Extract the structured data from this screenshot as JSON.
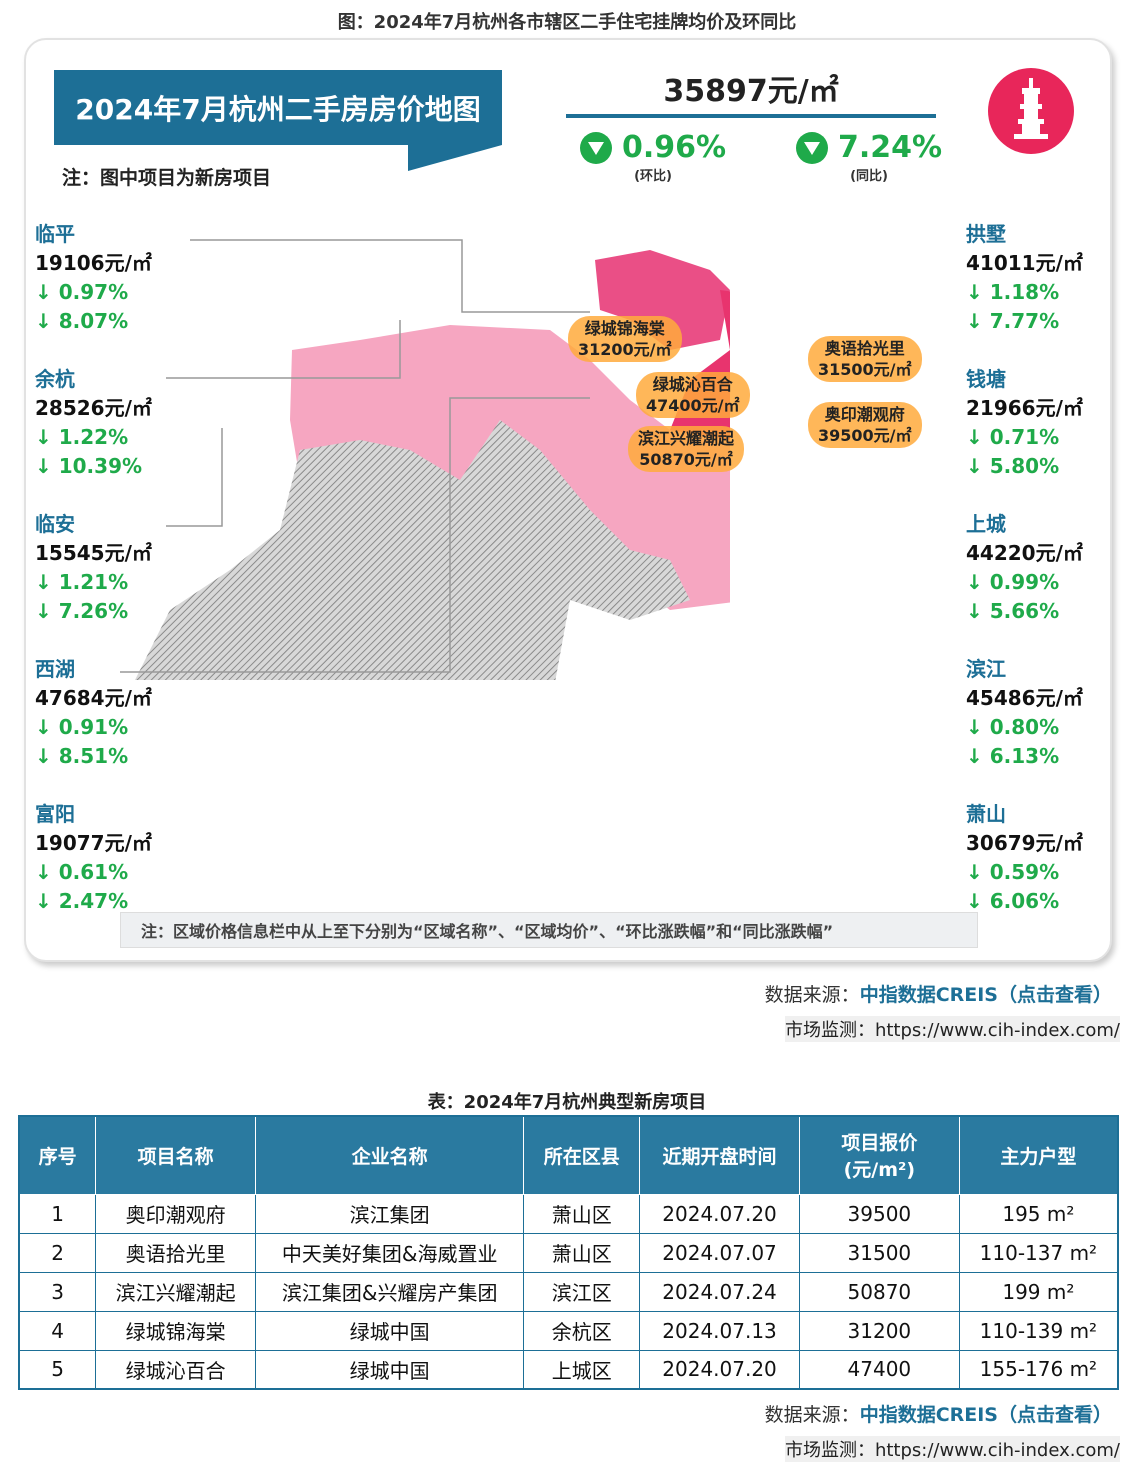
{
  "figure_title": "图：2024年7月杭州各市辖区二手住宅挂牌均价及环同比",
  "map": {
    "banner_title": "2024年7月杭州二手房房价地图",
    "note": "注：图中项目为新房项目",
    "avg_price": "35897元/㎡",
    "mom": {
      "value": "0.96%",
      "label": "(环比)",
      "direction": "down"
    },
    "yoy": {
      "value": "7.24%",
      "label": "(同比)",
      "direction": "down"
    },
    "logo_icon": "pagoda-icon",
    "colors": {
      "accent": "#1d6f96",
      "down": "#1faa4a",
      "core": "#e8346e",
      "mid": "#f48fb1",
      "hatched": "#b0b0b0"
    },
    "left_districts": [
      {
        "name": "临平",
        "price": "19106元/㎡",
        "mom": "↓ 0.97%",
        "yoy": "↓ 8.07%"
      },
      {
        "name": "余杭",
        "price": "28526元/㎡",
        "mom": "↓ 1.22%",
        "yoy": "↓ 10.39%"
      },
      {
        "name": "临安",
        "price": "15545元/㎡",
        "mom": "↓ 1.21%",
        "yoy": "↓ 7.26%"
      },
      {
        "name": "西湖",
        "price": "47684元/㎡",
        "mom": "↓ 0.91%",
        "yoy": "↓ 8.51%"
      },
      {
        "name": "富阳",
        "price": "19077元/㎡",
        "mom": "↓ 0.61%",
        "yoy": "↓ 2.47%"
      }
    ],
    "right_districts": [
      {
        "name": "拱墅",
        "price": "41011元/㎡",
        "mom": "↓ 1.18%",
        "yoy": "↓ 7.77%"
      },
      {
        "name": "钱塘",
        "price": "21966元/㎡",
        "mom": "↓ 0.71%",
        "yoy": "↓ 5.80%"
      },
      {
        "name": "上城",
        "price": "44220元/㎡",
        "mom": "↓ 0.99%",
        "yoy": "↓ 5.66%"
      },
      {
        "name": "滨江",
        "price": "45486元/㎡",
        "mom": "↓ 0.80%",
        "yoy": "↓ 6.13%"
      },
      {
        "name": "萧山",
        "price": "30679元/㎡",
        "mom": "↓ 0.59%",
        "yoy": "↓ 6.06%"
      }
    ],
    "projects": [
      {
        "name": "绿城锦海棠",
        "price": "31200元/㎡"
      },
      {
        "name": "奥语拾光里",
        "price": "31500元/㎡"
      },
      {
        "name": "绿城沁百合",
        "price": "47400元/㎡"
      },
      {
        "name": "奥印潮观府",
        "price": "39500元/㎡"
      },
      {
        "name": "滨江兴耀潮起",
        "price": "50870元/㎡"
      }
    ],
    "bottom_note": "注：区域价格信息栏中从上至下分别为“区域名称”、“区域均价”、“环比涨跌幅”和“同比涨跌幅”",
    "watermark": "中指数据 CREIS"
  },
  "source": {
    "label": "数据来源：",
    "link": "中指数据CREIS（点击查看）",
    "monitor": "市场监测：https://www.cih-index.com/"
  },
  "table": {
    "title": "表：2024年7月杭州典型新房项目",
    "headers": [
      "序号",
      "项目名称",
      "企业名称",
      "所在区县",
      "近期开盘时间",
      "项目报价\n(元/m²)",
      "主力户型"
    ],
    "rows": [
      [
        "1",
        "奥印潮观府",
        "滨江集团",
        "萧山区",
        "2024.07.20",
        "39500",
        "195 m²"
      ],
      [
        "2",
        "奥语拾光里",
        "中天美好集团&海威置业",
        "萧山区",
        "2024.07.07",
        "31500",
        "110-137 m²"
      ],
      [
        "3",
        "滨江兴耀潮起",
        "滨江集团&兴耀房产集团",
        "滨江区",
        "2024.07.24",
        "50870",
        "199 m²"
      ],
      [
        "4",
        "绿城锦海棠",
        "绿城中国",
        "余杭区",
        "2024.07.13",
        "31200",
        "110-139 m²"
      ],
      [
        "5",
        "绿城沁百合",
        "绿城中国",
        "上城区",
        "2024.07.20",
        "47400",
        "155-176 m²"
      ]
    ]
  }
}
